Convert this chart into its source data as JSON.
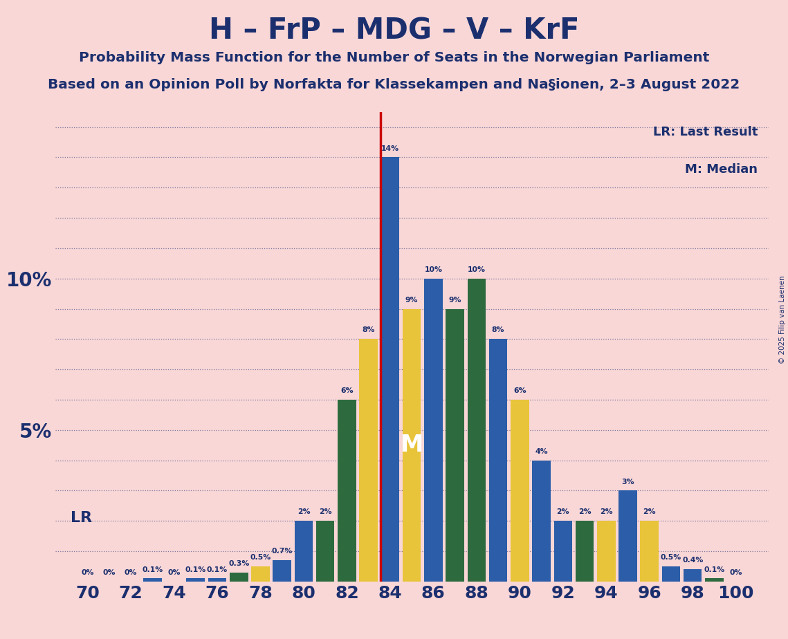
{
  "title1": "H – FrP – MDG – V – KrF",
  "title2": "Probability Mass Function for the Number of Seats in the Norwegian Parliament",
  "title3": "Based on an Opinion Poll by Norfakta for Klassekampen and Na§ionen, 2–3 August 2022",
  "background_color": "#F9D7D7",
  "blue": "#2B5DA8",
  "dkgreen": "#2D6B3F",
  "yellow": "#E8C43A",
  "text_color": "#1B2F6E",
  "lr_line_color": "#CC0000",
  "seats": [
    70,
    71,
    72,
    73,
    74,
    75,
    76,
    77,
    78,
    79,
    80,
    81,
    82,
    83,
    84,
    85,
    86,
    87,
    88,
    89,
    90,
    91,
    92,
    93,
    94,
    95,
    96,
    97,
    98,
    99,
    100
  ],
  "values": [
    0.0,
    0.0,
    0.0,
    0.1,
    0.0,
    0.1,
    0.1,
    0.3,
    0.5,
    0.7,
    2.0,
    2.0,
    6.0,
    8.0,
    14.0,
    9.0,
    10.0,
    9.0,
    10.0,
    8.0,
    6.0,
    4.0,
    2.0,
    2.0,
    2.0,
    3.0,
    2.0,
    0.5,
    0.4,
    0.1,
    0.0
  ],
  "colors": [
    "#2B5DA8",
    "#2B5DA8",
    "#2B5DA8",
    "#2B5DA8",
    "#2B5DA8",
    "#2B5DA8",
    "#2B5DA8",
    "#2D6B3F",
    "#E8C43A",
    "#2B5DA8",
    "#2B5DA8",
    "#2D6B3F",
    "#2D6B3F",
    "#E8C43A",
    "#2B5DA8",
    "#E8C43A",
    "#2B5DA8",
    "#2D6B3F",
    "#2D6B3F",
    "#2B5DA8",
    "#E8C43A",
    "#2B5DA8",
    "#2B5DA8",
    "#2D6B3F",
    "#E8C43A",
    "#2B5DA8",
    "#E8C43A",
    "#2B5DA8",
    "#2B5DA8",
    "#2D6B3F",
    "#2B5DA8"
  ],
  "LR_seat": 84,
  "median_seat": 85,
  "ylim": 15.5,
  "copyright": "© 2025 Filip van Laenen",
  "lr_label": "LR: Last Result",
  "m_label": "M: Median"
}
